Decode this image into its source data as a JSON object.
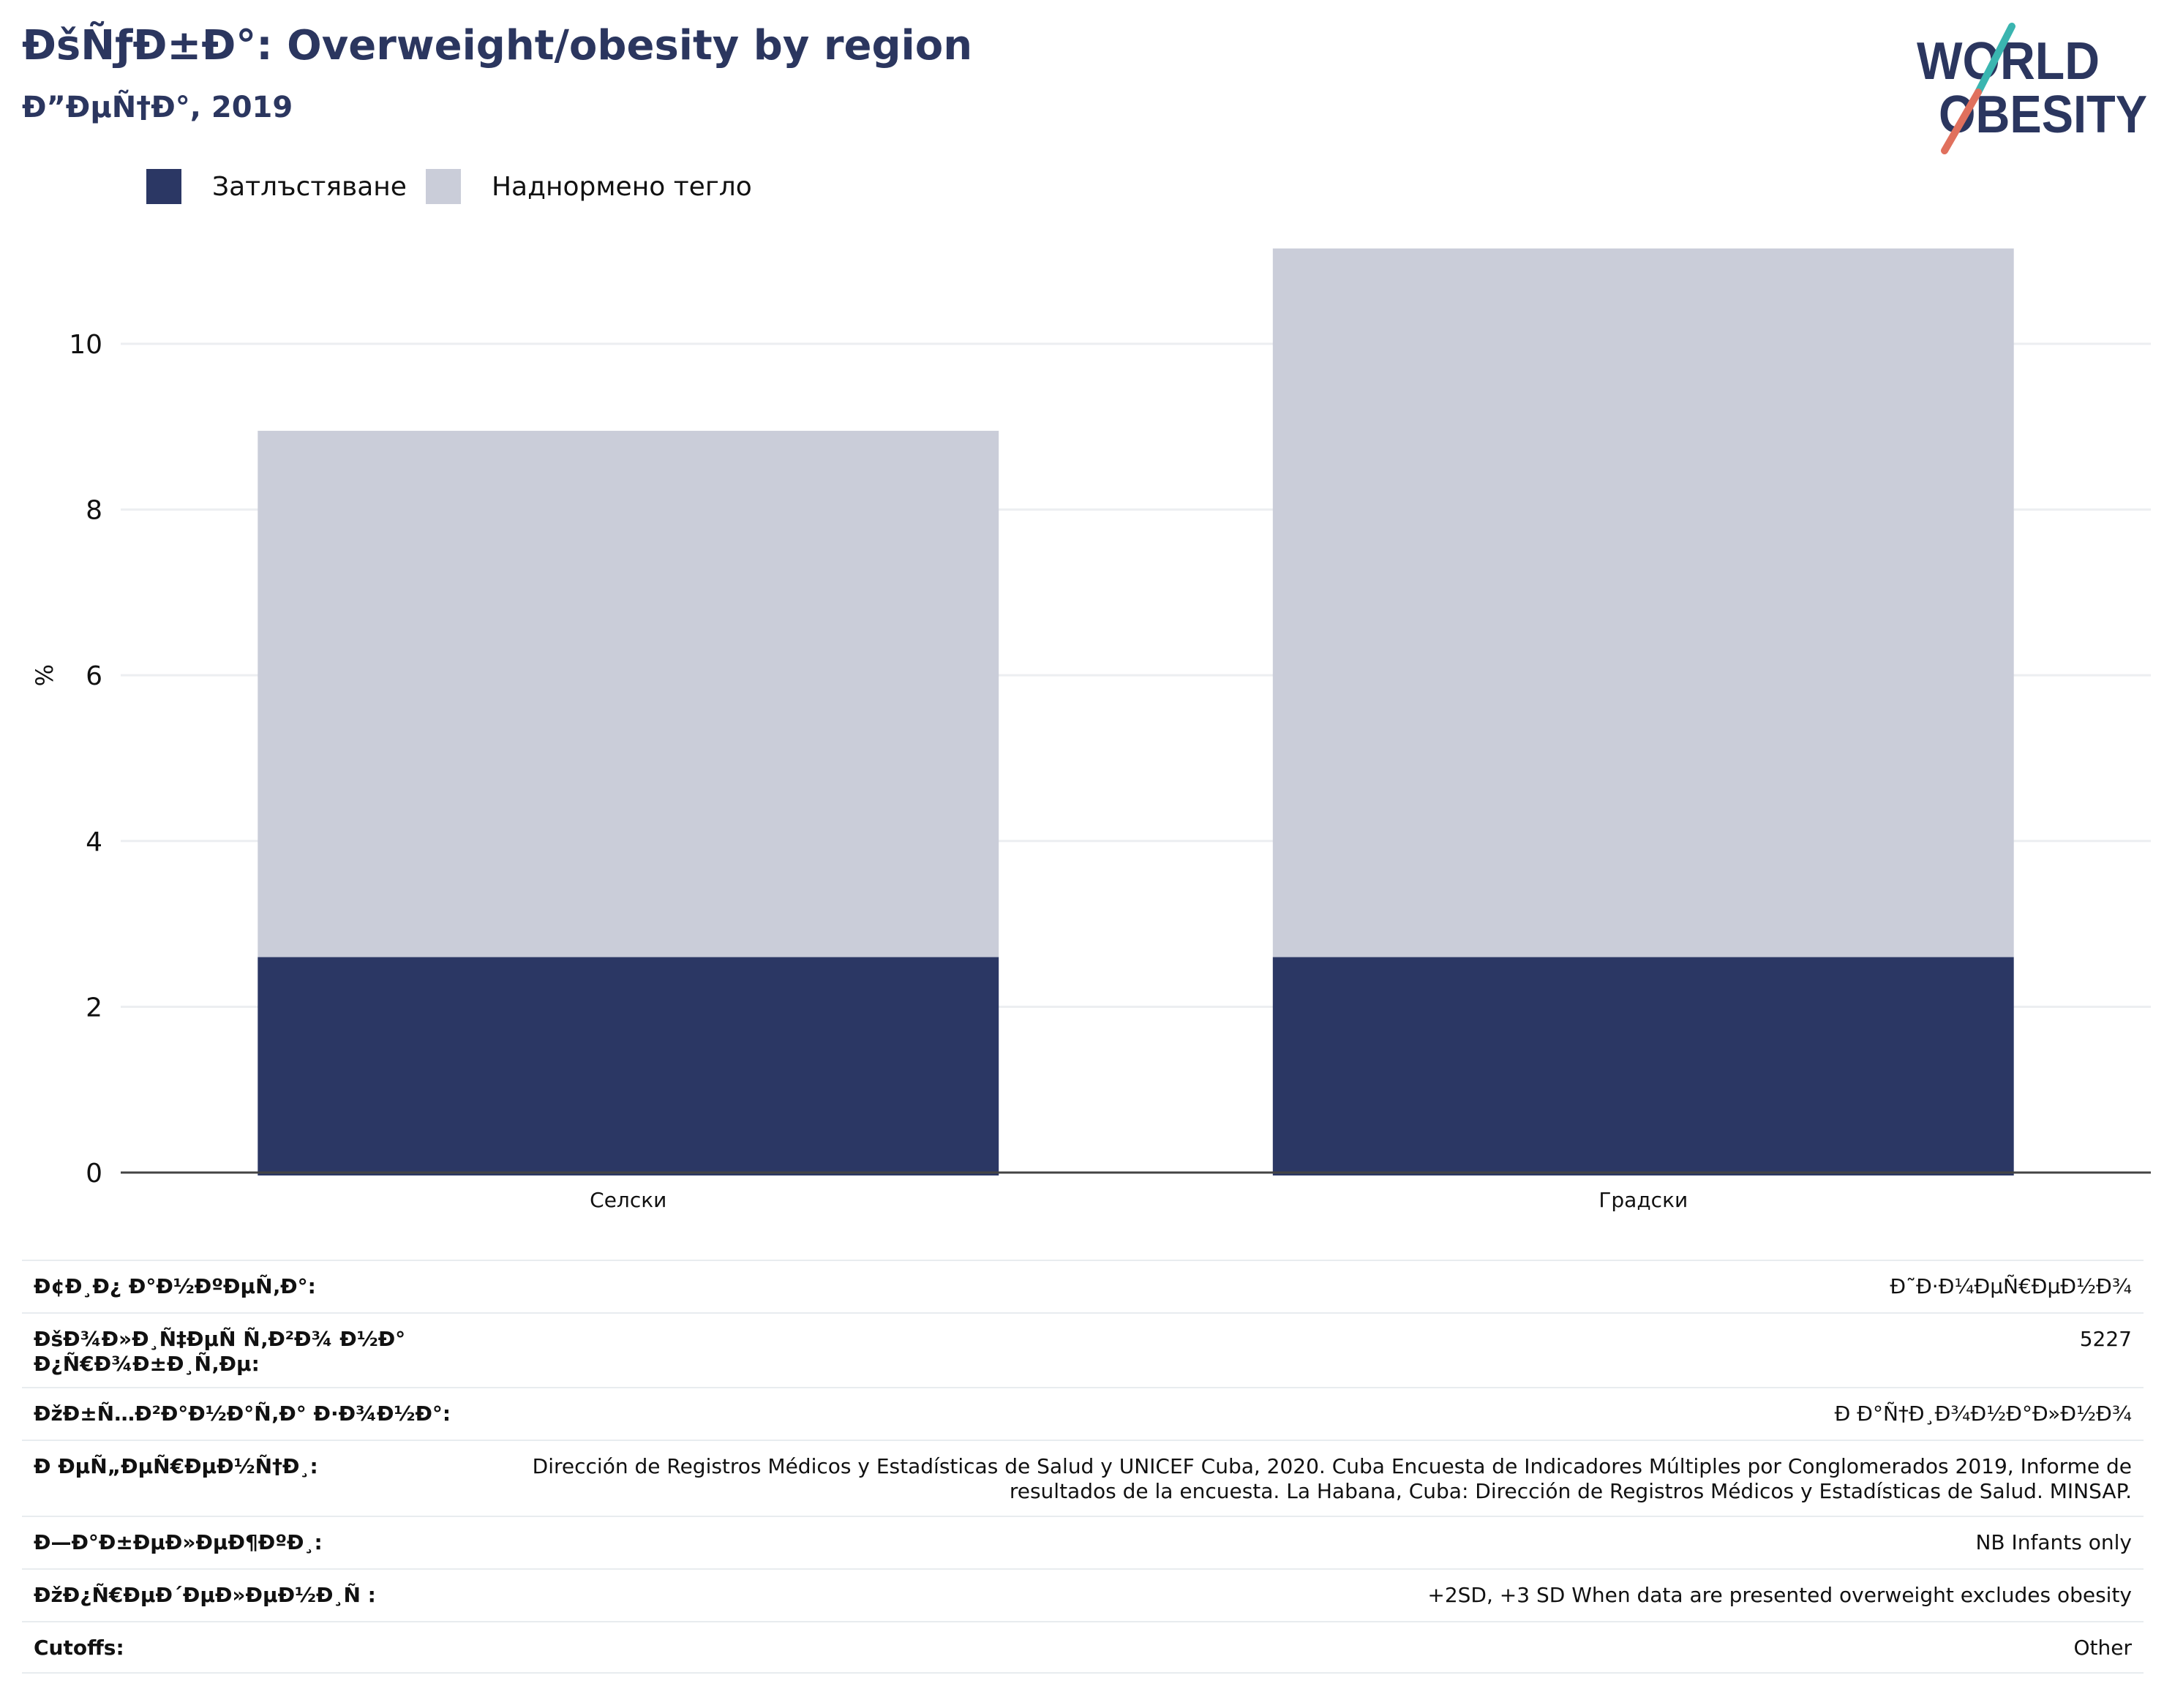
{
  "header": {
    "title": "ÐšÑƒÐ±Ð°: Overweight/obesity by region",
    "subtitle": "Ð”ÐµÑ†Ð°, 2019"
  },
  "logo": {
    "line1": "WORLD",
    "line2": "OBESITY",
    "text_color": "#2b365f",
    "slash_top_color": "#3ab5b0",
    "slash_bottom_color": "#e0705d"
  },
  "legend": {
    "items": [
      {
        "label": "Затлъстяване",
        "color": "#2b3764"
      },
      {
        "label": "Наднормено тегло",
        "color": "#cacdd9"
      }
    ]
  },
  "chart_data": {
    "type": "bar",
    "stacked": true,
    "categories": [
      "Селски",
      "Градски"
    ],
    "series": [
      {
        "name": "Затлъстяване",
        "values": [
          2.6,
          2.6
        ],
        "color": "#2b3764"
      },
      {
        "name": "Наднормено тегло",
        "values": [
          6.35,
          8.55
        ],
        "color": "#cacdd9"
      }
    ],
    "ylabel": "%",
    "ylim": [
      0,
      11.5
    ],
    "yticks": [
      0,
      2,
      4,
      6,
      8,
      10
    ],
    "grid": true
  },
  "info": {
    "rows": [
      {
        "label": "Ð¢Ð¸Ð¿ Ð°Ð½ÐºÐµÑ‚Ð°:",
        "value": "Ð˜Ð·Ð¼ÐµÑ€ÐµÐ½Ð¾"
      },
      {
        "label": "ÐšÐ¾Ð»Ð¸Ñ‡ÐµÑ Ñ‚Ð²Ð¾ Ð½Ð° Ð¿Ñ€Ð¾Ð±Ð¸Ñ‚Ðµ:",
        "value": "5227"
      },
      {
        "label": "ÐžÐ±Ñ…Ð²Ð°Ð½Ð°Ñ‚Ð° Ð·Ð¾Ð½Ð°:",
        "value": "Ð Ð°Ñ†Ð¸Ð¾Ð½Ð°Ð»Ð½Ð¾"
      },
      {
        "label": "Ð ÐµÑ„ÐµÑ€ÐµÐ½Ñ†Ð¸:",
        "value": "Dirección de Registros Médicos y Estadísticas de Salud y UNICEF Cuba, 2020. Cuba Encuesta de Indicadores Múltiples por Conglomerados 2019, Informe de resultados de la encuesta. La Habana, Cuba: Dirección de Registros Médicos y Estadísticas de Salud. MINSAP."
      },
      {
        "label": "Ð—Ð°Ð±ÐµÐ»ÐµÐ¶ÐºÐ¸:",
        "value": "NB Infants only"
      },
      {
        "label": "ÐžÐ¿Ñ€ÐµÐ´ÐµÐ»ÐµÐ½Ð¸Ñ :",
        "value": "+2SD, +3 SD When data are presented overweight excludes obesity"
      },
      {
        "label": "Cutoffs:",
        "value": "Other"
      }
    ]
  }
}
